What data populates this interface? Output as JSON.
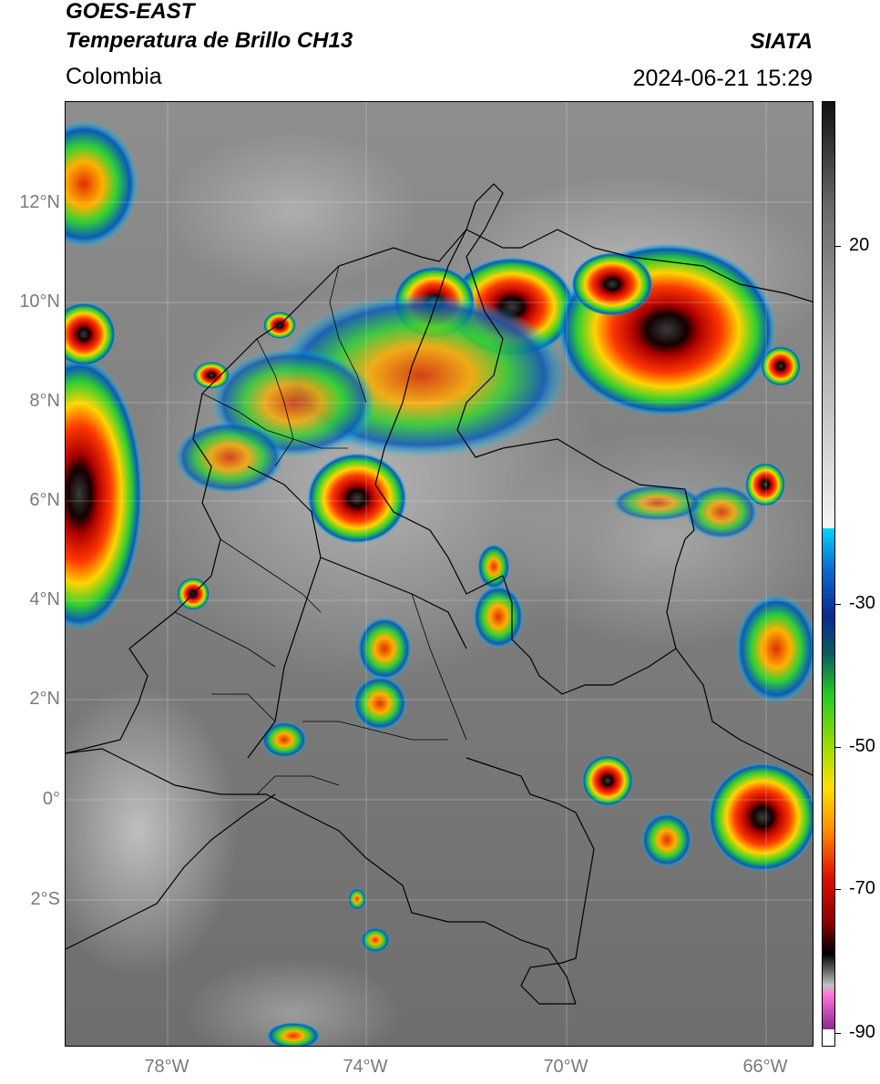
{
  "title": {
    "line1": "GOES-EAST",
    "line2": "Temperatura de Brillo CH13",
    "region": "Colombia",
    "source": "SIATA",
    "datetime": "2024-06-21 15:29"
  },
  "axes": {
    "lat_labels": [
      "12°N",
      "10°N",
      "8°N",
      "6°N",
      "4°N",
      "2°N",
      "0°",
      "2°S"
    ],
    "lon_labels": [
      "78°W",
      "74°W",
      "70°W",
      "66°W"
    ]
  },
  "colorbar": {
    "ticks": [
      "20",
      "-30",
      "-50",
      "-70",
      "-90"
    ],
    "colors": {
      "warm_top": "#111111",
      "warm_mid": "#9a9a9a",
      "warm_low": "#f2f2f2",
      "cyan": "#00d4ff",
      "blue": "#0a3aa8",
      "green": "#2ccc2c",
      "yellow": "#f5e400",
      "orange": "#ff7a00",
      "red": "#d40000",
      "dark": "#1a0000",
      "magenta": "#e070d0",
      "purple": "#7a1a8a"
    }
  }
}
